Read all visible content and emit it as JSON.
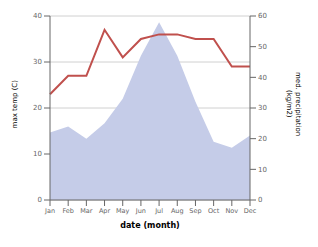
{
  "chart_data": {
    "type": "line",
    "xlabel": "date (month)",
    "ylabel": "max temp (C)",
    "y2label": "med. precipitation\n(kg/m2)",
    "categories": [
      "Jan",
      "Feb",
      "Mar",
      "Apr",
      "May",
      "Jun",
      "Jul",
      "Aug",
      "Sep",
      "Oct",
      "Nov",
      "Dec"
    ],
    "series": [
      {
        "type": "area",
        "axis": "y2",
        "color": "#c5cce8",
        "values": [
          22,
          24,
          20,
          25,
          33,
          47,
          58,
          47,
          32,
          19,
          17,
          21
        ]
      },
      {
        "type": "line",
        "color": "#c0504d",
        "values": [
          23,
          27,
          27,
          37,
          31,
          35,
          36,
          36,
          35,
          35,
          29,
          29
        ]
      }
    ],
    "ylim": [
      0,
      40
    ],
    "yticks": [
      0,
      10,
      20,
      30,
      40
    ],
    "y2lim": [
      0,
      60
    ],
    "y2ticks": [
      0,
      10,
      20,
      30,
      40,
      50,
      60
    ],
    "grid": true
  }
}
